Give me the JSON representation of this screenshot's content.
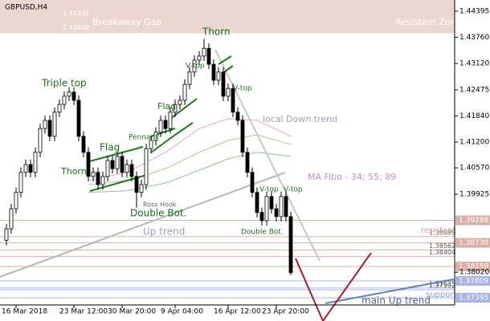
{
  "chart_data": {
    "type": "candlestick",
    "title": "GBPUSD,H4",
    "categories": [
      null,
      null,
      "16 Mar 2018",
      null,
      null,
      null,
      null,
      null,
      null,
      null,
      null,
      null,
      null,
      null,
      "23 Mar 12:00",
      null,
      null,
      null,
      null,
      null,
      null,
      null,
      null,
      null,
      "30 Mar 20:00",
      null,
      null,
      null,
      null,
      null,
      null,
      null,
      null,
      null,
      null,
      "9 Apr 04:00",
      null,
      null,
      null,
      null,
      null,
      null,
      null,
      null,
      null,
      null,
      "16 Apr 12:00",
      null,
      null,
      null,
      null,
      null,
      null,
      null,
      null,
      null,
      "23 Apr 20:00",
      null,
      null,
      null
    ],
    "open": [
      1.388,
      1.3908,
      1.3957,
      1.3997,
      1.4046,
      1.4065,
      1.4046,
      1.4095,
      1.4153,
      1.4173,
      1.4134,
      1.4193,
      1.4212,
      1.4232,
      1.4242,
      1.4222,
      1.4134,
      1.4095,
      1.4036,
      1.4046,
      1.4016,
      1.4036,
      1.4075,
      1.4055,
      1.4085,
      1.4046,
      1.4065,
      1.4036,
      1.3997,
      1.4016,
      1.4104,
      1.4124,
      1.4144,
      1.4173,
      1.4153,
      1.4193,
      1.4212,
      1.4222,
      1.4261,
      1.4291,
      1.432,
      1.433,
      1.4349,
      1.431,
      1.4271,
      1.4291,
      1.4232,
      1.4251,
      1.4193,
      1.4173,
      1.4095,
      1.4046,
      1.3997,
      1.3948,
      1.3928,
      1.3987,
      1.3957,
      1.3938,
      1.3987,
      1.3938
    ],
    "high": [
      1.392,
      1.3969,
      1.4009,
      1.4058,
      1.4077,
      1.4077,
      1.4107,
      1.4165,
      1.4185,
      1.4185,
      1.4205,
      1.4224,
      1.4244,
      1.4254,
      1.4254,
      1.4234,
      1.4146,
      1.4107,
      1.4058,
      1.4058,
      1.4048,
      1.4087,
      1.4087,
      1.4097,
      1.4097,
      1.4077,
      1.4077,
      1.4048,
      1.4028,
      1.4116,
      1.4136,
      1.4156,
      1.4185,
      1.4185,
      1.4205,
      1.4224,
      1.4234,
      1.4273,
      1.4303,
      1.4332,
      1.4342,
      1.4372,
      1.4361,
      1.4322,
      1.4303,
      1.4303,
      1.4263,
      1.4263,
      1.4205,
      1.4185,
      1.4107,
      1.4058,
      1.4009,
      1.396,
      1.3999,
      1.3999,
      1.3969,
      1.3999,
      1.3999,
      1.395
    ],
    "low": [
      1.3868,
      1.3896,
      1.3945,
      1.3985,
      1.4034,
      1.4034,
      1.4034,
      1.4083,
      1.4141,
      1.4122,
      1.4122,
      1.4181,
      1.42,
      1.422,
      1.421,
      1.4122,
      1.4083,
      1.4024,
      1.4024,
      1.4004,
      1.4004,
      1.4024,
      1.4043,
      1.4043,
      1.4034,
      1.4034,
      1.4024,
      1.396,
      1.3985,
      1.4004,
      1.4092,
      1.4112,
      1.4132,
      1.4141,
      1.4141,
      1.4181,
      1.42,
      1.421,
      1.4249,
      1.4279,
      1.4308,
      1.4318,
      1.4298,
      1.4259,
      1.4259,
      1.422,
      1.422,
      1.4181,
      1.4161,
      1.4083,
      1.4034,
      1.3985,
      1.3936,
      1.3916,
      1.3916,
      1.3945,
      1.3926,
      1.3926,
      1.3926,
      1.3795
    ],
    "close": [
      1.3908,
      1.3957,
      1.3997,
      1.4046,
      1.4065,
      1.4046,
      1.4095,
      1.4153,
      1.4173,
      1.4134,
      1.4193,
      1.4212,
      1.4232,
      1.4242,
      1.4222,
      1.4134,
      1.4095,
      1.4036,
      1.4046,
      1.4016,
      1.4036,
      1.4075,
      1.4055,
      1.4085,
      1.4046,
      1.4065,
      1.4036,
      1.3997,
      1.4016,
      1.4104,
      1.4124,
      1.4144,
      1.4173,
      1.4153,
      1.4193,
      1.4212,
      1.4222,
      1.4261,
      1.4291,
      1.432,
      1.433,
      1.4349,
      1.431,
      1.4271,
      1.4291,
      1.4232,
      1.4251,
      1.4193,
      1.4173,
      1.4095,
      1.4046,
      1.3997,
      1.3948,
      1.3928,
      1.3987,
      1.3957,
      1.3938,
      1.3987,
      1.3938,
      1.3801
    ],
    "series": [
      {
        "color": "#e8a8c8",
        "x": [
          17,
          25,
          33,
          40,
          46,
          52,
          59
        ],
        "values": [
          1.4026,
          1.4046,
          1.4095,
          1.4153,
          1.4177,
          1.4173,
          1.4134
        ]
      },
      {
        "color": "#c8b890",
        "x": [
          17,
          25,
          33,
          40,
          46,
          52,
          59
        ],
        "values": [
          1.4016,
          1.4026,
          1.4055,
          1.4095,
          1.4124,
          1.4138,
          1.4114
        ]
      },
      {
        "color": "#90c090",
        "x": [
          17,
          25,
          33,
          40,
          46,
          52,
          59
        ],
        "values": [
          1.3997,
          1.4001,
          1.402,
          1.4051,
          1.4079,
          1.4095,
          1.4085
        ]
      }
    ],
    "ylim": [
      1.37221,
      1.4467
    ],
    "yticks": [
      1.44395,
      {
        "value": 1.4376,
        "label": "1.43760"
      },
      {
        "value": 1.4312,
        "label": "1.43120"
      },
      1.42475,
      {
        "value": 1.4184,
        "label": "1.41840"
      },
      {
        "value": 1.412,
        "label": "1.41200"
      },
      {
        "value": 1.4057,
        "label": "1.40570"
      },
      1.39925,
      {
        "value": 1.3802,
        "label": "1.38020"
      }
    ],
    "levels": [
      {
        "value": 1.39288,
        "boxed": true,
        "color": "#d8b0a8"
      },
      {
        "value": 1.38889,
        "boxed": false,
        "color": "#d8b0a8"
      },
      {
        "value": 1.38738,
        "boxed": true,
        "color": "#d8b0a8"
      },
      {
        "value": 1.38562,
        "boxed": false,
        "color": "#d8b0a8"
      },
      {
        "value": 1.38404,
        "boxed": false,
        "color": "#d8b0a8"
      },
      {
        "value": 1.38159,
        "boxed": true,
        "color": "#d8b0a8"
      },
      {
        "value": 1.37809,
        "boxed": true,
        "color": "#a8b4e8"
      },
      {
        "value": 1.37635,
        "boxed": false,
        "color": "#a8b4e8"
      },
      {
        "value": 1.37592,
        "boxed": false,
        "color": "#a8b4e8"
      },
      {
        "value": 1.37395,
        "boxed": true,
        "color": "#a8b4e8"
      }
    ],
    "gap": {
      "high": 1.44335,
      "low": 1.43858,
      "color": "#ecd6d0"
    },
    "annotations": [
      "Breakaway Gap",
      "Resistant Zone",
      "Triple top",
      "Thorn",
      "Thorn",
      "Flag",
      "Flag",
      "Pennant",
      "V-top",
      "V-top",
      "V-top",
      "V-top",
      "Double Bot.",
      "Double Bot.",
      "Ross Hook",
      "local Down trend",
      "MA Fibo - 34; 55; 89",
      "Up trend",
      "resistant",
      "support",
      "main Up trend"
    ]
  }
}
